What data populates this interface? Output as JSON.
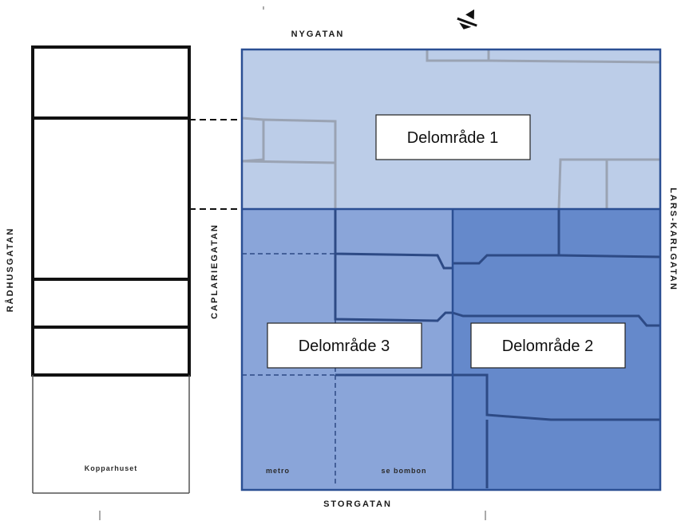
{
  "streets": {
    "top": "NYGATAN",
    "bottom": "STORGATAN",
    "left": "RÅDHUSGATAN",
    "middle": "CAPLARIEGATAN",
    "right": "LARS-KARLGATAN"
  },
  "buildings": {
    "kopparhuset": "Kopparhuset",
    "metro": "metro",
    "bombon": "se bombon"
  },
  "areas": [
    {
      "label": "Delområde 1",
      "color": "#bccde8"
    },
    {
      "label": "Delområde 2",
      "color": "#6589cb"
    },
    {
      "label": "Delområde 3",
      "color": "#8aa5d9"
    }
  ],
  "colors": {
    "block_outline": "#2b4f93",
    "lines": "#222222"
  }
}
